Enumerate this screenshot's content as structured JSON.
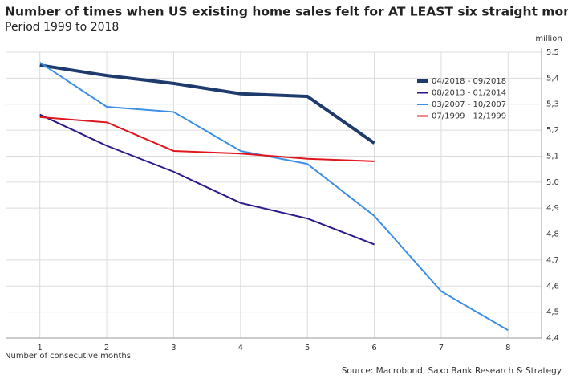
{
  "chart_data": {
    "type": "line",
    "title": "Number of times when US existing home sales felt for AT LEAST six straight months",
    "subtitle": "Period 1999 to 2018",
    "y_unit": "million",
    "xlabel": "Number of consecutive months",
    "source": "Source: Macrobond, Saxo Bank Research & Strategy",
    "categories": [
      "1",
      "2",
      "3",
      "4",
      "5",
      "6",
      "7",
      "8"
    ],
    "series": [
      {
        "name": "04/2018 - 09/2018",
        "color": "#1f3b6e",
        "width": 4,
        "values": [
          5.45,
          5.41,
          5.38,
          5.34,
          5.33,
          5.15,
          null,
          null
        ]
      },
      {
        "name": "08/2013 - 01/2014",
        "color": "#2a1a8c",
        "width": 2,
        "values": [
          5.26,
          5.14,
          5.04,
          4.92,
          4.86,
          4.76,
          null,
          null
        ]
      },
      {
        "name": "03/2007 - 10/2007",
        "color": "#3d8ee6",
        "width": 2,
        "values": [
          5.46,
          5.29,
          5.27,
          5.12,
          5.07,
          4.87,
          4.58,
          4.43
        ]
      },
      {
        "name": "07/1999 - 12/1999",
        "color": "#e0161e",
        "width": 2,
        "values": [
          5.25,
          5.23,
          5.12,
          5.11,
          5.09,
          5.08,
          null,
          null
        ]
      }
    ],
    "ylim": [
      4.4,
      5.5
    ],
    "yticks": [
      {
        "value": 4.4,
        "label": "4,4"
      },
      {
        "value": 4.5,
        "label": "4,5"
      },
      {
        "value": 4.6,
        "label": "4,6"
      },
      {
        "value": 4.7,
        "label": "4,7"
      },
      {
        "value": 4.8,
        "label": "4,8"
      },
      {
        "value": 4.9,
        "label": "4,9"
      },
      {
        "value": 5.0,
        "label": "5,0"
      },
      {
        "value": 5.1,
        "label": "5,1"
      },
      {
        "value": 5.2,
        "label": "5,2"
      },
      {
        "value": 5.3,
        "label": "5,3"
      },
      {
        "value": 5.4,
        "label": "5,4"
      },
      {
        "value": 5.5,
        "label": "5,5"
      }
    ],
    "y_axis_side": "right",
    "grid": true,
    "legend": "upper right"
  }
}
